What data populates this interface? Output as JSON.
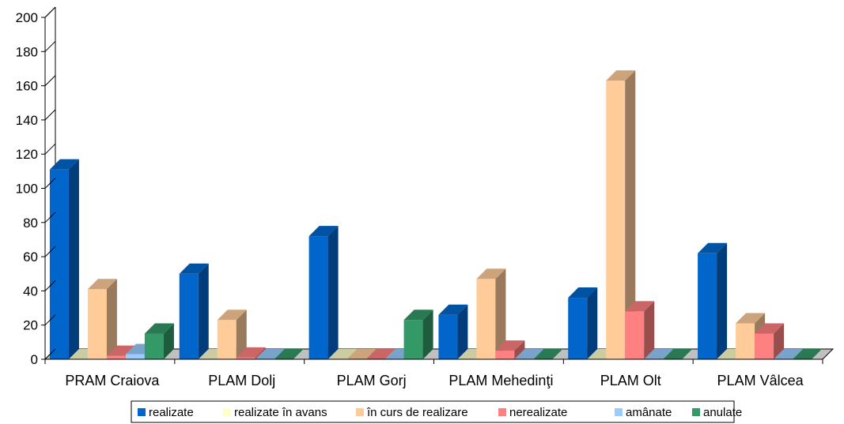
{
  "chart_data": {
    "type": "bar",
    "categories": [
      "PRAM Craiova",
      "PLAM Dolj",
      "PLAM Gorj",
      "PLAM Mehedinţi",
      "PLAM Olt",
      "PLAM Vâlcea"
    ],
    "series": [
      {
        "name": "realizate",
        "color": "#0066CC",
        "values": [
          111,
          50,
          72,
          26,
          36,
          62
        ]
      },
      {
        "name": "realizate în avans",
        "color": "#FFFFCC",
        "values": [
          0,
          0,
          0,
          0,
          0,
          0
        ]
      },
      {
        "name": "în curs de realizare",
        "color": "#FFCC99",
        "values": [
          41,
          23,
          0,
          47,
          163,
          21
        ]
      },
      {
        "name": "nerealizate",
        "color": "#FF8080",
        "values": [
          2,
          1,
          0,
          5,
          28,
          15
        ]
      },
      {
        "name": "amânate",
        "color": "#99CCFF",
        "values": [
          3,
          0,
          0,
          0,
          0,
          0
        ]
      },
      {
        "name": "anulate",
        "color": "#339966",
        "values": [
          15,
          0,
          23,
          0,
          0,
          0
        ]
      }
    ],
    "y_ticks": [
      "0",
      "20",
      "40",
      "60",
      "80",
      "100",
      "120",
      "140",
      "160",
      "180",
      "200"
    ],
    "ylim": [
      0,
      200
    ],
    "legend_position": "bottom",
    "projection": "3d-clustered"
  }
}
